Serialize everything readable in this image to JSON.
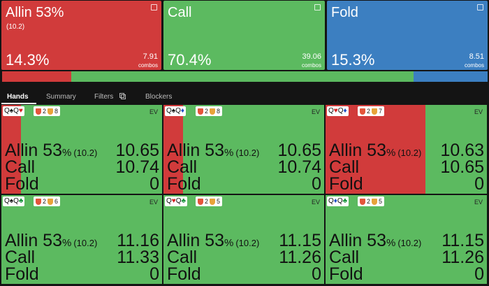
{
  "actions": [
    {
      "title": "Allin 53%",
      "sizing": "(10.2)",
      "frequency": {
        "value": 14.3,
        "label": "14.3%"
      },
      "combos": "7.91",
      "combos_label": "combos",
      "color": "#d13b3b"
    },
    {
      "title": "Call",
      "frequency": {
        "value": 70.4,
        "label": "70.4%"
      },
      "combos": "39.06",
      "combos_label": "combos",
      "color": "#5cba60"
    },
    {
      "title": "Fold",
      "frequency": {
        "value": 15.3,
        "label": "15.3%"
      },
      "combos": "8.51",
      "combos_label": "combos",
      "color": "#3c7fc1"
    }
  ],
  "tabs": [
    "Hands",
    "Summary",
    "Filters",
    "Blockers"
  ],
  "active_tab": 0,
  "hands": [
    {
      "cards": [
        {
          "rank": "Q",
          "suit": "♠",
          "color": "#111111"
        },
        {
          "rank": "Q",
          "suit": "♥",
          "color": "#d42020"
        }
      ],
      "badges": [
        "2",
        "8"
      ],
      "ev_label": "EV",
      "allin_share": 12,
      "rows": [
        {
          "action": "Allin 53",
          "unit": "%",
          "sizing": "(10.2)",
          "ev": "10.65"
        },
        {
          "action": "Call",
          "ev": "10.74"
        },
        {
          "action": "Fold",
          "ev": "0"
        }
      ]
    },
    {
      "cards": [
        {
          "rank": "Q",
          "suit": "♠",
          "color": "#111111"
        },
        {
          "rank": "Q",
          "suit": "♦",
          "color": "#1f4fc4"
        }
      ],
      "badges": [
        "2",
        "8"
      ],
      "ev_label": "EV",
      "allin_share": 12,
      "rows": [
        {
          "action": "Allin 53",
          "unit": "%",
          "sizing": "(10.2)",
          "ev": "10.65"
        },
        {
          "action": "Call",
          "ev": "10.74"
        },
        {
          "action": "Fold",
          "ev": "0"
        }
      ]
    },
    {
      "cards": [
        {
          "rank": "Q",
          "suit": "♥",
          "color": "#d42020"
        },
        {
          "rank": "Q",
          "suit": "♦",
          "color": "#1f4fc4"
        }
      ],
      "badges": [
        "2",
        "7"
      ],
      "ev_label": "EV",
      "allin_share": 62,
      "rows": [
        {
          "action": "Allin 53",
          "unit": "%",
          "sizing": "(10.2)",
          "ev": "10.63"
        },
        {
          "action": "Call",
          "ev": "10.65"
        },
        {
          "action": "Fold",
          "ev": "0"
        }
      ]
    },
    {
      "cards": [
        {
          "rank": "Q",
          "suit": "♠",
          "color": "#111111"
        },
        {
          "rank": "Q",
          "suit": "♣",
          "color": "#17943a"
        }
      ],
      "badges": [
        "2",
        "6"
      ],
      "ev_label": "EV",
      "allin_share": 0,
      "rows": [
        {
          "action": "Allin 53",
          "unit": "%",
          "sizing": "(10.2)",
          "ev": "11.16"
        },
        {
          "action": "Call",
          "ev": "11.33"
        },
        {
          "action": "Fold",
          "ev": "0"
        }
      ]
    },
    {
      "cards": [
        {
          "rank": "Q",
          "suit": "♥",
          "color": "#d42020"
        },
        {
          "rank": "Q",
          "suit": "♣",
          "color": "#17943a"
        }
      ],
      "badges": [
        "2",
        "5"
      ],
      "ev_label": "EV",
      "allin_share": 0,
      "rows": [
        {
          "action": "Allin 53",
          "unit": "%",
          "sizing": "(10.2)",
          "ev": "11.15"
        },
        {
          "action": "Call",
          "ev": "11.26"
        },
        {
          "action": "Fold",
          "ev": "0"
        }
      ]
    },
    {
      "cards": [
        {
          "rank": "Q",
          "suit": "♦",
          "color": "#1f4fc4"
        },
        {
          "rank": "Q",
          "suit": "♣",
          "color": "#17943a"
        }
      ],
      "badges": [
        "2",
        "5"
      ],
      "ev_label": "EV",
      "allin_share": 0,
      "rows": [
        {
          "action": "Allin 53",
          "unit": "%",
          "sizing": "(10.2)",
          "ev": "11.15"
        },
        {
          "action": "Call",
          "ev": "11.26"
        },
        {
          "action": "Fold",
          "ev": "0"
        }
      ]
    }
  ]
}
